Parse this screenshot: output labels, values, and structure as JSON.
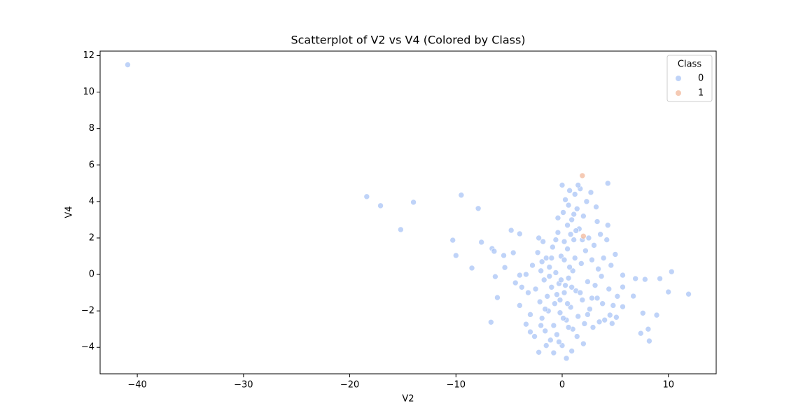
{
  "chart_data": {
    "type": "scatter",
    "title": "Scatterplot of V2 vs V4 (Colored by Class)",
    "x_label": "V2",
    "y_label": "V4",
    "xlim": [
      -43.5,
      14.5
    ],
    "ylim": [
      -5.45,
      12.25
    ],
    "xticks": [
      {
        "value": -40,
        "label": "−40"
      },
      {
        "value": -30,
        "label": "−30"
      },
      {
        "value": -20,
        "label": "−20"
      },
      {
        "value": -10,
        "label": "−10"
      },
      0,
      10
    ],
    "yticks": [
      {
        "value": -4,
        "label": "−4"
      },
      {
        "value": -2,
        "label": "−2"
      },
      0,
      2,
      4,
      6,
      8,
      10,
      12
    ],
    "grid": false,
    "legend_title": "Class",
    "legend_position": "upper right",
    "series": [
      {
        "name": "0",
        "color": "#aac4f5",
        "x": [
          -40.9,
          -18.4,
          -17.1,
          -14.0,
          -15.2,
          -9.5,
          -7.9,
          -10.3,
          -10.0,
          -8.5,
          -7.6,
          -6.6,
          -6.4,
          -6.7,
          -6.3,
          -6.1,
          -5.5,
          -5.4,
          -4.8,
          -4.6,
          -4.4,
          -4.0,
          -4.0,
          -3.8,
          -4.0,
          -3.4,
          -3.0,
          -2.2,
          10.3,
          10.0,
          11.9,
          9.2,
          8.9,
          8.2,
          8.1,
          7.8,
          7.4,
          7.6,
          6.9,
          6.7,
          5.7,
          5.7,
          5.7,
          5.1,
          4.3,
          4.5,
          4.7,
          -2.8,
          -2.5,
          -2.3,
          -2.1,
          -2.0,
          -1.9,
          -1.8,
          -1.7,
          -1.6,
          -1.5,
          -1.4,
          -1.3,
          -1.2,
          -1.1,
          -1.0,
          -0.9,
          -0.8,
          -0.7,
          -0.6,
          -0.5,
          -0.4,
          -0.3,
          -0.2,
          -0.1,
          0.0,
          0.1,
          0.2,
          0.3,
          0.4,
          0.5,
          0.6,
          0.7,
          0.8,
          0.9,
          1.0,
          1.1,
          1.2,
          1.3,
          1.4,
          1.5,
          1.6,
          1.7,
          1.8,
          1.9,
          2.0,
          2.1,
          2.2,
          2.3,
          2.4,
          2.5,
          2.6,
          2.7,
          2.8,
          2.9,
          3.0,
          3.1,
          3.2,
          3.3,
          3.4,
          3.5,
          3.6,
          3.7,
          3.8,
          3.9,
          4.0,
          4.2,
          4.3,
          4.4,
          4.6,
          4.8,
          5.0,
          5.2,
          -3.2,
          -3.0,
          -3.4,
          -2.6,
          -2.2,
          -1.5,
          -0.8,
          0.4,
          0.9,
          -0.3,
          0.2,
          0.5,
          -0.6,
          1.0,
          0.8,
          0.3,
          -0.2,
          0.6,
          1.4,
          1.7,
          -1.0,
          -1.6,
          0.1,
          1.2,
          0.0,
          0.6,
          1.5,
          0.2,
          -0.4,
          1.1,
          2.0,
          2.4,
          -2.0,
          -1.2,
          1.9,
          0.7,
          -0.5,
          0.9,
          2.8,
          3.3,
          -1.9,
          1.3,
          -0.1,
          0.5
        ],
        "y": [
          11.5,
          4.27,
          3.77,
          3.96,
          2.46,
          4.35,
          3.62,
          1.88,
          1.04,
          0.35,
          1.77,
          1.42,
          1.27,
          -2.62,
          -0.12,
          -1.27,
          1.04,
          0.38,
          2.42,
          1.19,
          -0.46,
          2.23,
          -0.04,
          -0.7,
          -1.7,
          -2.73,
          -3.15,
          -4.27,
          0.15,
          -0.96,
          -1.08,
          -0.23,
          -2.23,
          -3.65,
          -3.0,
          -0.27,
          -3.23,
          -2.12,
          -0.23,
          -1.19,
          -0.69,
          -0.04,
          -1.77,
          -2.35,
          5.0,
          -2.23,
          -2.69,
          0.5,
          -0.8,
          1.2,
          -1.5,
          0.2,
          -2.4,
          1.8,
          -0.3,
          -3.1,
          0.9,
          -1.2,
          -2.0,
          0.4,
          -3.6,
          -0.7,
          1.5,
          -2.8,
          -1.6,
          0.1,
          -3.3,
          2.3,
          -0.5,
          -2.1,
          1.0,
          -3.9,
          3.4,
          -1.0,
          4.1,
          -2.5,
          2.7,
          -0.2,
          4.6,
          -1.8,
          3.0,
          -3.0,
          1.9,
          4.4,
          -0.9,
          3.6,
          -2.3,
          2.5,
          4.7,
          0.6,
          -1.4,
          3.2,
          -2.7,
          1.3,
          4.0,
          -0.4,
          2.0,
          -1.9,
          4.5,
          0.8,
          -2.9,
          1.6,
          -0.6,
          3.7,
          -1.3,
          0.3,
          -2.6,
          2.2,
          -0.1,
          -1.6,
          0.9,
          -2.5,
          1.9,
          2.7,
          -0.8,
          0.5,
          -1.7,
          1.1,
          -1.2,
          -1.0,
          -2.2,
          0.0,
          -3.4,
          2.0,
          -3.9,
          -4.3,
          -4.6,
          -4.2,
          -3.7,
          0.8,
          1.4,
          1.9,
          0.2,
          2.2,
          -0.6,
          -1.4,
          -2.9,
          -3.4,
          -1.0,
          0.9,
          -1.9,
          -2.4,
          0.9,
          4.9,
          3.8,
          4.9,
          1.8,
          3.1,
          3.3,
          -3.8,
          -2.2,
          -2.8,
          -0.1,
          1.9,
          0.4,
          -1.1,
          -0.7,
          -1.3,
          2.9,
          0.7,
          2.4,
          -0.3,
          -1.6
        ]
      },
      {
        "name": "1",
        "color": "#f1b89b",
        "x": [
          1.9,
          2.0
        ],
        "y": [
          5.42,
          2.1
        ]
      }
    ]
  }
}
